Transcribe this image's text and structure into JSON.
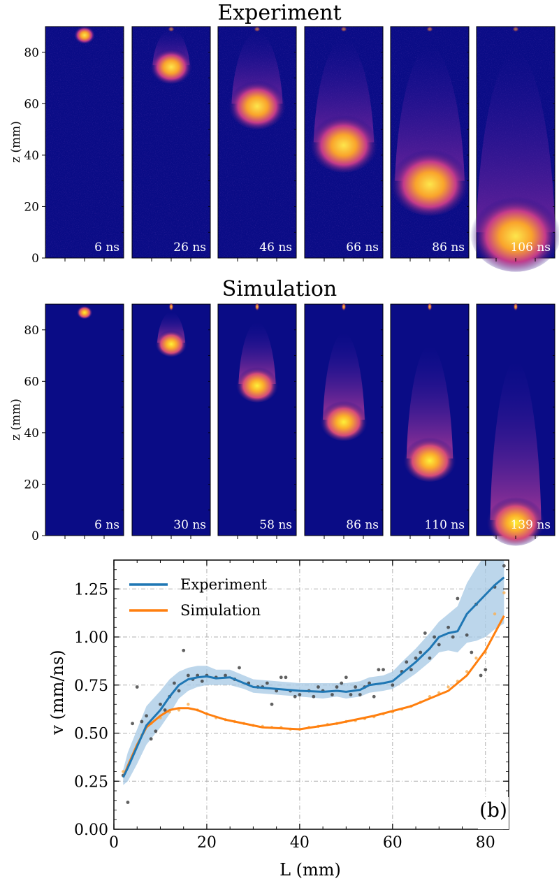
{
  "chart_data": [
    {
      "type": "heatmap",
      "title": "Experiment",
      "ylabel": "z (mm)",
      "ylim": [
        0,
        90
      ],
      "yticks": [
        "0",
        "20",
        "40",
        "60",
        "80"
      ],
      "panels": [
        {
          "time": "6 ns",
          "head_z": 87,
          "head_r": 4,
          "tail": 0
        },
        {
          "time": "26 ns",
          "head_z": 75,
          "head_r": 8,
          "tail": 14
        },
        {
          "time": "46 ns",
          "head_z": 60,
          "head_r": 11,
          "tail": 28
        },
        {
          "time": "66 ns",
          "head_z": 45,
          "head_r": 13,
          "tail": 40
        },
        {
          "time": "86 ns",
          "head_z": 30,
          "head_r": 15,
          "tail": 52
        },
        {
          "time": "106 ns",
          "head_z": 10,
          "head_r": 17,
          "tail": 70
        }
      ]
    },
    {
      "type": "heatmap",
      "title": "Simulation",
      "ylabel": "z (mm)",
      "ylim": [
        0,
        90
      ],
      "yticks": [
        "0",
        "20",
        "40",
        "60",
        "80"
      ],
      "panels": [
        {
          "time": "6 ns",
          "head_z": 87,
          "head_r": 3,
          "tail": 0
        },
        {
          "time": "30 ns",
          "head_z": 75,
          "head_r": 6,
          "tail": 12
        },
        {
          "time": "58 ns",
          "head_z": 59,
          "head_r": 8,
          "tail": 24
        },
        {
          "time": "86 ns",
          "head_z": 45,
          "head_r": 9,
          "tail": 34
        },
        {
          "time": "110 ns",
          "head_z": 30,
          "head_r": 10,
          "tail": 44
        },
        {
          "time": "139 ns",
          "head_z": 6,
          "head_r": 11,
          "tail": 62
        }
      ]
    },
    {
      "type": "line",
      "xlabel": "L (mm)",
      "ylabel": "v (mm/ns)",
      "xlim": [
        0,
        85
      ],
      "ylim": [
        0.0,
        1.4
      ],
      "xticks": [
        "0",
        "20",
        "40",
        "60",
        "80"
      ],
      "yticks": [
        "0.00",
        "0.25",
        "0.50",
        "0.75",
        "1.00",
        "1.25"
      ],
      "panel_label": "(b)",
      "legend_position": "top-left",
      "series": [
        {
          "name": "Experiment",
          "color": "#1f77b4",
          "band_color": "#a6c8e4",
          "x": [
            2,
            3,
            5,
            7,
            10,
            12,
            14,
            16,
            18,
            20,
            22,
            25,
            28,
            30,
            35,
            40,
            45,
            48,
            50,
            53,
            55,
            58,
            60,
            62,
            65,
            68,
            70,
            72,
            74,
            76,
            78,
            80,
            82,
            84
          ],
          "y": [
            0.27,
            0.32,
            0.43,
            0.54,
            0.62,
            0.69,
            0.75,
            0.78,
            0.79,
            0.795,
            0.785,
            0.79,
            0.76,
            0.74,
            0.73,
            0.72,
            0.715,
            0.72,
            0.715,
            0.725,
            0.75,
            0.76,
            0.77,
            0.81,
            0.87,
            0.94,
            1.0,
            1.02,
            1.03,
            1.12,
            1.17,
            1.22,
            1.27,
            1.31
          ],
          "band_lower": [
            0.23,
            0.25,
            0.34,
            0.44,
            0.53,
            0.6,
            0.68,
            0.72,
            0.74,
            0.75,
            0.75,
            0.75,
            0.73,
            0.71,
            0.7,
            0.69,
            0.68,
            0.69,
            0.68,
            0.69,
            0.71,
            0.72,
            0.73,
            0.76,
            0.81,
            0.87,
            0.92,
            0.93,
            0.92,
            0.97,
            0.98,
            1.0,
            1.04,
            1.07
          ],
          "band_upper": [
            0.31,
            0.4,
            0.52,
            0.64,
            0.72,
            0.78,
            0.82,
            0.84,
            0.85,
            0.85,
            0.83,
            0.83,
            0.8,
            0.78,
            0.77,
            0.76,
            0.76,
            0.76,
            0.76,
            0.77,
            0.79,
            0.8,
            0.82,
            0.87,
            0.94,
            1.02,
            1.08,
            1.12,
            1.16,
            1.28,
            1.36,
            1.43,
            1.48,
            1.53
          ],
          "points": [
            [
              2,
              0.28
            ],
            [
              3,
              0.14
            ],
            [
              4,
              0.55
            ],
            [
              5,
              0.74
            ],
            [
              6,
              0.56
            ],
            [
              7,
              0.59
            ],
            [
              8,
              0.47
            ],
            [
              9,
              0.51
            ],
            [
              10,
              0.65
            ],
            [
              11,
              0.62
            ],
            [
              12,
              0.69
            ],
            [
              13,
              0.76
            ],
            [
              14,
              0.72
            ],
            [
              15,
              0.93
            ],
            [
              16,
              0.8
            ],
            [
              17,
              0.78
            ],
            [
              18,
              0.8
            ],
            [
              19,
              0.77
            ],
            [
              20,
              0.8
            ],
            [
              22,
              0.79
            ],
            [
              24,
              0.8
            ],
            [
              26,
              0.78
            ],
            [
              27,
              0.84
            ],
            [
              29,
              0.76
            ],
            [
              31,
              0.74
            ],
            [
              32,
              0.74
            ],
            [
              33,
              0.76
            ],
            [
              34,
              0.65
            ],
            [
              35,
              0.72
            ],
            [
              36,
              0.79
            ],
            [
              37,
              0.79
            ],
            [
              38,
              0.72
            ],
            [
              39,
              0.69
            ],
            [
              40,
              0.7
            ],
            [
              42,
              0.72
            ],
            [
              43,
              0.69
            ],
            [
              44,
              0.74
            ],
            [
              45,
              0.72
            ],
            [
              47,
              0.7
            ],
            [
              48,
              0.74
            ],
            [
              49,
              0.76
            ],
            [
              50,
              0.79
            ],
            [
              51,
              0.7
            ],
            [
              52,
              0.74
            ],
            [
              53,
              0.7
            ],
            [
              54,
              0.74
            ],
            [
              55,
              0.76
            ],
            [
              56,
              0.69
            ],
            [
              57,
              0.83
            ],
            [
              58,
              0.83
            ],
            [
              60,
              0.75
            ],
            [
              62,
              0.82
            ],
            [
              63,
              0.87
            ],
            [
              64,
              0.83
            ],
            [
              65,
              0.89
            ],
            [
              66,
              0.92
            ],
            [
              67,
              1.02
            ],
            [
              68,
              0.89
            ],
            [
              69,
              1.0
            ],
            [
              70,
              0.96
            ],
            [
              72,
              1.05
            ],
            [
              73,
              1.0
            ],
            [
              74,
              1.2
            ],
            [
              76,
              1.01
            ],
            [
              77,
              0.92
            ],
            [
              78,
              1.17
            ],
            [
              79,
              0.8
            ],
            [
              80,
              0.83
            ],
            [
              82,
              1.26
            ],
            [
              84,
              1.37
            ]
          ]
        },
        {
          "name": "Simulation",
          "color": "#ff7f0e",
          "x": [
            2,
            3,
            5,
            7,
            10,
            12,
            14,
            16,
            18,
            20,
            24,
            28,
            32,
            36,
            40,
            44,
            48,
            52,
            56,
            60,
            64,
            68,
            72,
            76,
            80,
            84
          ],
          "y": [
            0.27,
            0.33,
            0.44,
            0.53,
            0.59,
            0.62,
            0.63,
            0.63,
            0.62,
            0.6,
            0.57,
            0.55,
            0.53,
            0.525,
            0.52,
            0.535,
            0.55,
            0.57,
            0.59,
            0.615,
            0.64,
            0.68,
            0.72,
            0.8,
            0.93,
            1.11
          ],
          "points": [
            [
              2,
              0.3
            ],
            [
              4,
              0.38
            ],
            [
              6,
              0.49
            ],
            [
              8,
              0.55
            ],
            [
              10,
              0.58
            ],
            [
              12,
              0.61
            ],
            [
              14,
              0.62
            ],
            [
              16,
              0.65
            ],
            [
              18,
              0.62
            ],
            [
              20,
              0.6
            ],
            [
              22,
              0.58
            ],
            [
              24,
              0.57
            ],
            [
              26,
              0.56
            ],
            [
              28,
              0.55
            ],
            [
              30,
              0.54
            ],
            [
              32,
              0.535
            ],
            [
              34,
              0.53
            ],
            [
              36,
              0.53
            ],
            [
              38,
              0.52
            ],
            [
              40,
              0.52
            ],
            [
              42,
              0.53
            ],
            [
              44,
              0.535
            ],
            [
              46,
              0.545
            ],
            [
              48,
              0.55
            ],
            [
              50,
              0.56
            ],
            [
              52,
              0.565
            ],
            [
              54,
              0.575
            ],
            [
              56,
              0.585
            ],
            [
              58,
              0.6
            ],
            [
              60,
              0.61
            ],
            [
              62,
              0.625
            ],
            [
              64,
              0.64
            ],
            [
              66,
              0.66
            ],
            [
              68,
              0.69
            ],
            [
              70,
              0.71
            ],
            [
              72,
              0.74
            ],
            [
              74,
              0.77
            ],
            [
              76,
              0.82
            ],
            [
              78,
              0.89
            ],
            [
              80,
              0.92
            ],
            [
              82,
              1.12
            ],
            [
              84,
              1.23
            ]
          ]
        }
      ]
    }
  ],
  "colors": {
    "background_panel": "#0a0c86",
    "plasma_mid": "#c33a8b",
    "plasma_hot": "#f9a42c",
    "plasma_peak": "#fdf13a"
  }
}
